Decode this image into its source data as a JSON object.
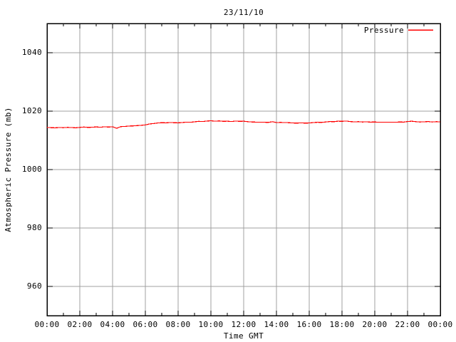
{
  "colors": {
    "background": "#ffffff",
    "border": "#000000",
    "grid": "#a0a0a0",
    "text": "#000000",
    "series_red": "#ff0000"
  },
  "chart_data": {
    "type": "line",
    "title": "23/11/10",
    "xlabel": "Time GMT",
    "ylabel": "Atmospheric Pressure (mb)",
    "grid": true,
    "x_range_hours": [
      0,
      24
    ],
    "x_tick_labels": [
      "00:00",
      "02:00",
      "04:00",
      "06:00",
      "08:00",
      "10:00",
      "12:00",
      "14:00",
      "16:00",
      "18:00",
      "20:00",
      "22:00",
      "00:00"
    ],
    "x_minor_tick_hours": [
      1,
      3,
      5,
      7,
      9,
      11,
      13,
      15,
      17,
      19,
      21,
      23
    ],
    "ylim": [
      950,
      1050
    ],
    "y_ticks": [
      960,
      980,
      1000,
      1020,
      1040
    ],
    "legend": {
      "position": "top-right-inside",
      "entries": [
        {
          "label": "Pressure",
          "color": "#ff0000"
        }
      ]
    },
    "series": [
      {
        "name": "Pressure",
        "color": "#ff0000",
        "x_hours": [
          0,
          0.25,
          0.5,
          0.75,
          1,
          1.25,
          1.5,
          1.75,
          2,
          2.25,
          2.5,
          2.75,
          3,
          3.25,
          3.5,
          3.75,
          4,
          4.25,
          4.5,
          4.75,
          5,
          5.25,
          5.5,
          5.75,
          6,
          6.25,
          6.5,
          6.75,
          7,
          7.25,
          7.5,
          7.75,
          8,
          8.25,
          8.5,
          8.75,
          9,
          9.25,
          9.5,
          9.75,
          10,
          10.25,
          10.5,
          10.75,
          11,
          11.25,
          11.5,
          11.75,
          12,
          12.25,
          12.5,
          12.75,
          13,
          13.25,
          13.5,
          13.75,
          14,
          14.25,
          14.5,
          14.75,
          15,
          15.25,
          15.5,
          15.75,
          16,
          16.25,
          16.5,
          16.75,
          17,
          17.25,
          17.5,
          17.75,
          18,
          18.25,
          18.5,
          18.75,
          19,
          19.25,
          19.5,
          19.75,
          20,
          20.25,
          20.5,
          20.75,
          21,
          21.25,
          21.5,
          21.75,
          22,
          22.25,
          22.5,
          22.75,
          23,
          23.25,
          23.5,
          23.75,
          24
        ],
        "values": [
          1014.45,
          1014.35,
          1014.3,
          1014.4,
          1014.35,
          1014.45,
          1014.4,
          1014.3,
          1014.45,
          1014.55,
          1014.45,
          1014.5,
          1014.6,
          1014.5,
          1014.65,
          1014.55,
          1014.65,
          1014.15,
          1014.7,
          1014.75,
          1014.9,
          1014.95,
          1015.05,
          1015.15,
          1015.3,
          1015.6,
          1015.75,
          1015.95,
          1016.05,
          1016.0,
          1016.1,
          1016.05,
          1016.0,
          1016.1,
          1016.25,
          1016.2,
          1016.35,
          1016.5,
          1016.45,
          1016.6,
          1016.7,
          1016.55,
          1016.65,
          1016.5,
          1016.55,
          1016.45,
          1016.6,
          1016.5,
          1016.55,
          1016.4,
          1016.3,
          1016.25,
          1016.2,
          1016.2,
          1016.15,
          1016.4,
          1016.1,
          1016.15,
          1016.1,
          1016.05,
          1015.95,
          1015.9,
          1016.0,
          1015.9,
          1015.95,
          1016.1,
          1016.2,
          1016.15,
          1016.3,
          1016.45,
          1016.4,
          1016.55,
          1016.5,
          1016.6,
          1016.45,
          1016.35,
          1016.4,
          1016.3,
          1016.35,
          1016.25,
          1016.3,
          1016.2,
          1016.25,
          1016.2,
          1016.25,
          1016.2,
          1016.3,
          1016.25,
          1016.45,
          1016.55,
          1016.4,
          1016.3,
          1016.35,
          1016.45,
          1016.3,
          1016.4,
          1016.35
        ]
      }
    ]
  }
}
